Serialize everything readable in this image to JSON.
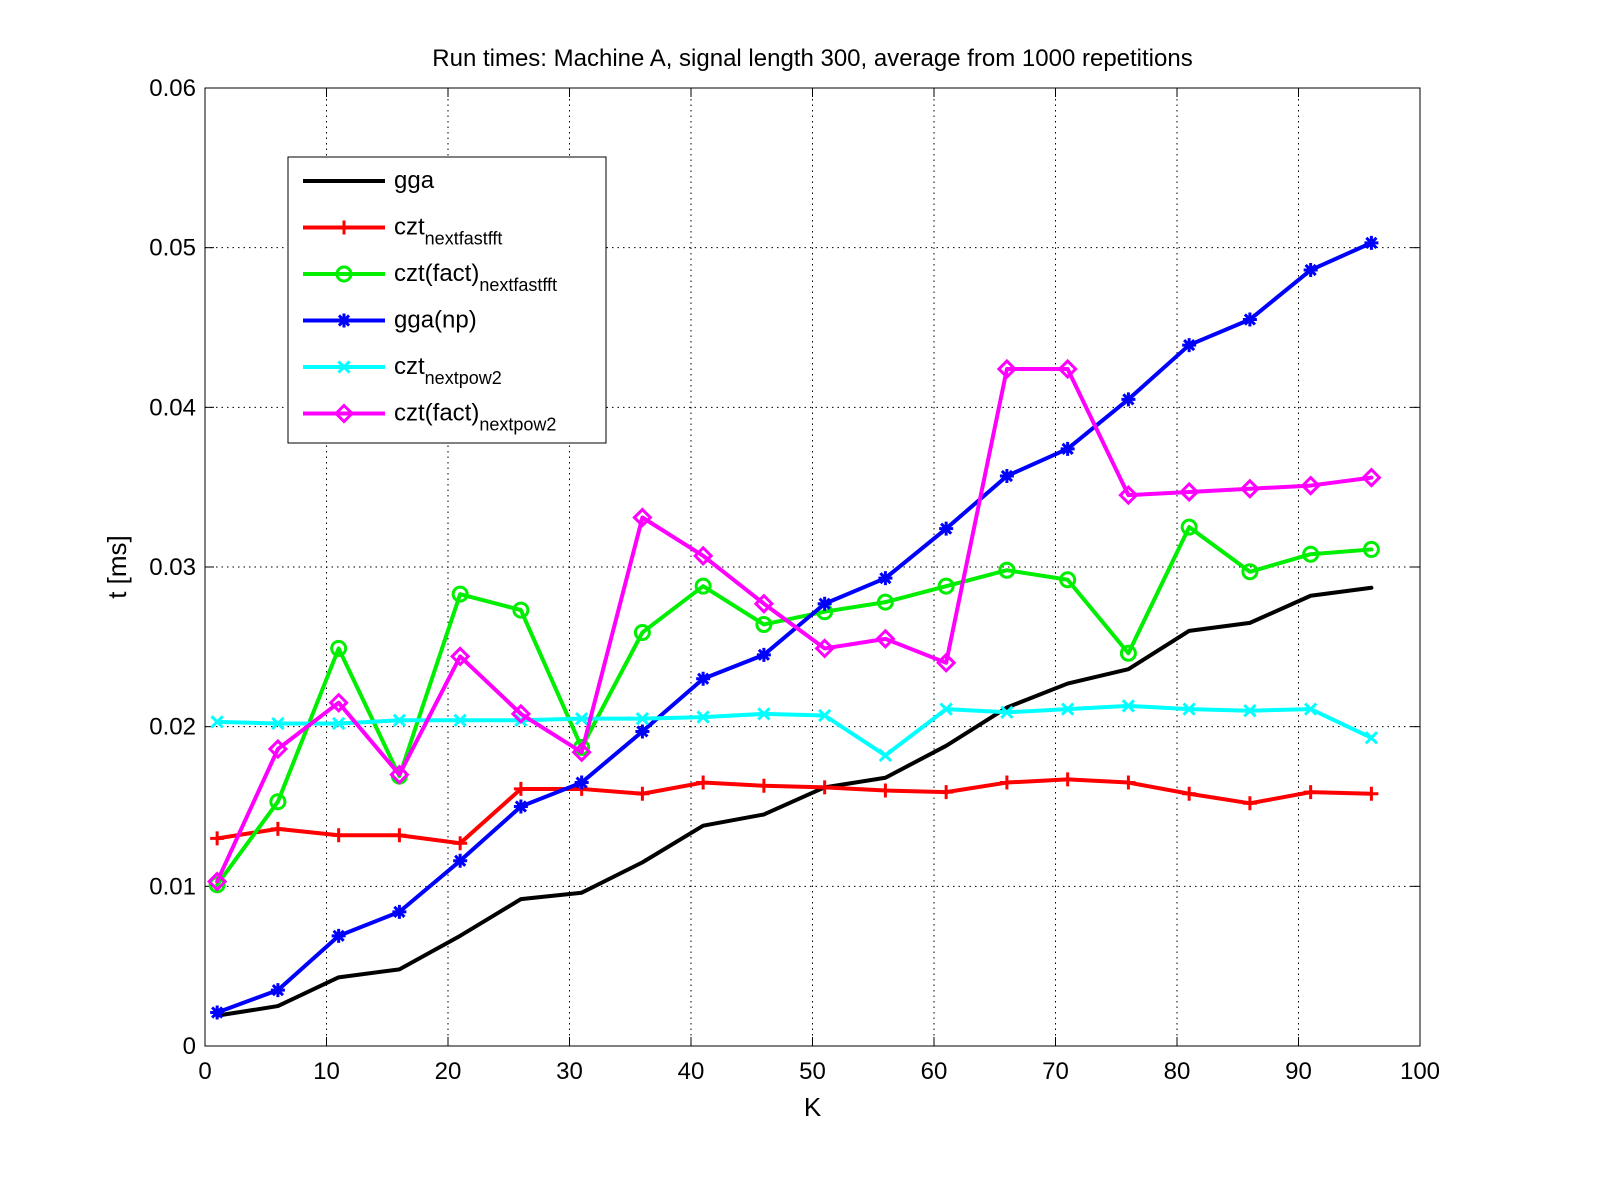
{
  "chart_data": {
    "type": "line",
    "title": "Run times: Machine A, signal length 300, average from 1000 repetitions",
    "xlabel": "K",
    "ylabel": "t [ms]",
    "xlim": [
      0,
      100
    ],
    "ylim": [
      0,
      0.06
    ],
    "xticks": [
      "0",
      "10",
      "20",
      "30",
      "40",
      "50",
      "60",
      "70",
      "80",
      "90",
      "100"
    ],
    "yticks": [
      "0",
      "0.01",
      "0.02",
      "0.03",
      "0.04",
      "0.05",
      "0.06"
    ],
    "grid": true,
    "legend_position": "top-left",
    "x": [
      1,
      6,
      11,
      16,
      21,
      26,
      31,
      36,
      41,
      46,
      51,
      56,
      61,
      66,
      71,
      76,
      81,
      86,
      91,
      96
    ],
    "series": [
      {
        "name": "gga",
        "legend_main": "gga",
        "legend_sub": "",
        "color": "#000000",
        "marker": "none",
        "values": [
          0.0019,
          0.0025,
          0.0043,
          0.0048,
          0.0069,
          0.0092,
          0.0096,
          0.0115,
          0.0138,
          0.0145,
          0.0162,
          0.0168,
          0.0188,
          0.0212,
          0.0227,
          0.0236,
          0.026,
          0.0265,
          0.0282,
          0.0287
        ]
      },
      {
        "name": "czt_nextfastfft",
        "legend_main": "czt",
        "legend_sub": "nextfastfft",
        "color": "#ff0000",
        "marker": "plus",
        "values": [
          0.013,
          0.0136,
          0.0132,
          0.0132,
          0.0127,
          0.0161,
          0.0161,
          0.0158,
          0.0165,
          0.0163,
          0.0162,
          0.016,
          0.0159,
          0.0165,
          0.0167,
          0.0165,
          0.0158,
          0.0152,
          0.0159,
          0.0158
        ]
      },
      {
        "name": "czt(fact)_nextfastfft",
        "legend_main": "czt(fact)",
        "legend_sub": "nextfastfft",
        "color": "#00ee00",
        "marker": "circle",
        "values": [
          0.0101,
          0.0153,
          0.0249,
          0.0169,
          0.0283,
          0.0273,
          0.0187,
          0.0259,
          0.0288,
          0.0264,
          0.0272,
          0.0278,
          0.0288,
          0.0298,
          0.0292,
          0.0246,
          0.0325,
          0.0297,
          0.0308,
          0.0311
        ]
      },
      {
        "name": "gga(np)",
        "legend_main": "gga(np)",
        "legend_sub": "",
        "color": "#0000ff",
        "marker": "asterisk",
        "values": [
          0.0021,
          0.0035,
          0.0069,
          0.0084,
          0.0116,
          0.015,
          0.0165,
          0.0197,
          0.023,
          0.0245,
          0.0277,
          0.0293,
          0.0324,
          0.0357,
          0.0374,
          0.0405,
          0.0439,
          0.0455,
          0.0486,
          0.0503
        ]
      },
      {
        "name": "czt_nextpow2",
        "legend_main": "czt",
        "legend_sub": "nextpow2",
        "color": "#00ffff",
        "marker": "x",
        "values": [
          0.0203,
          0.0202,
          0.0202,
          0.0204,
          0.0204,
          0.0204,
          0.0205,
          0.0205,
          0.0206,
          0.0208,
          0.0207,
          0.0182,
          0.0211,
          0.0209,
          0.0211,
          0.0213,
          0.0211,
          0.021,
          0.0211,
          0.0193
        ]
      },
      {
        "name": "czt(fact)_nextpow2",
        "legend_main": "czt(fact)",
        "legend_sub": "nextpow2",
        "color": "#ff00ff",
        "marker": "diamond",
        "values": [
          0.0103,
          0.0186,
          0.0215,
          0.017,
          0.0244,
          0.0208,
          0.0184,
          0.0331,
          0.0307,
          0.0277,
          0.0249,
          0.0255,
          0.024,
          0.0424,
          0.0424,
          0.0345,
          0.0347,
          0.0349,
          0.0351,
          0.0356
        ]
      }
    ]
  }
}
